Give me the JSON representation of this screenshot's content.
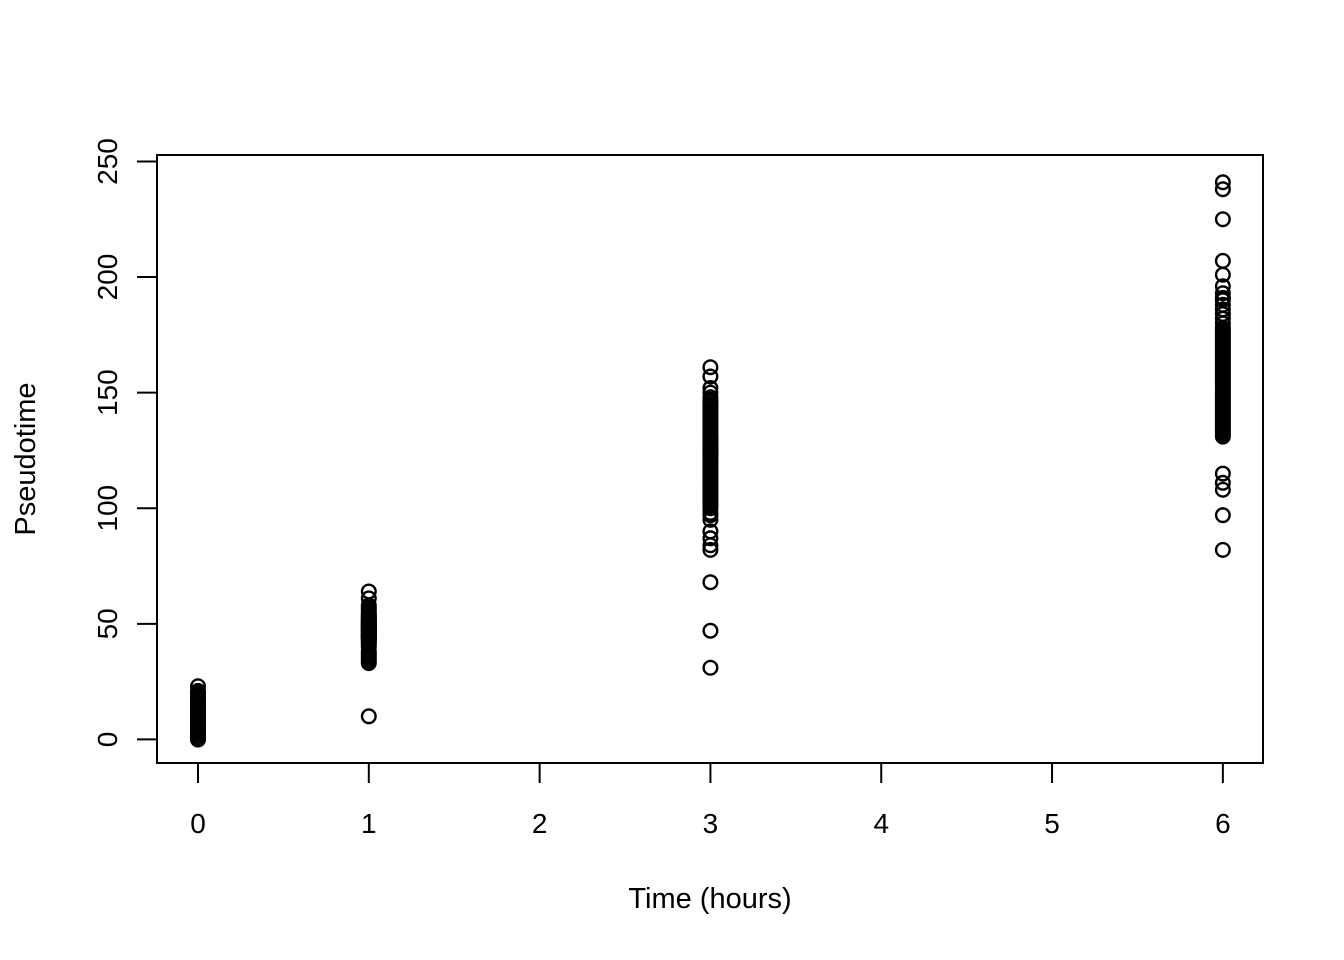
{
  "chart_data": {
    "type": "scatter",
    "title": "",
    "xlabel": "Time (hours)",
    "ylabel": "Pseudotime",
    "x_ticks": [
      0,
      1,
      2,
      3,
      4,
      5,
      6
    ],
    "y_ticks": [
      0,
      50,
      100,
      150,
      200,
      250
    ],
    "xlim": [
      -0.24,
      6.235
    ],
    "ylim": [
      -10.2,
      252.8
    ],
    "grid": false,
    "legend": "none",
    "marker": "open-circle",
    "point_color": "#000000",
    "axis_color": "#000000",
    "background_color": "#ffffff",
    "groups": [
      {
        "x": 0,
        "values": [
          0,
          0,
          1,
          2,
          3,
          4,
          5,
          5,
          6,
          6,
          7,
          7,
          7,
          8,
          8,
          8,
          9,
          9,
          9,
          9,
          10,
          10,
          10,
          10,
          11,
          11,
          11,
          11,
          12,
          12,
          12,
          12,
          13,
          13,
          13,
          13,
          14,
          14,
          14,
          15,
          15,
          15,
          16,
          16,
          16,
          17,
          17,
          18,
          18,
          19,
          20,
          21,
          23
        ]
      },
      {
        "x": 1,
        "values": [
          10,
          33,
          34,
          35,
          36,
          37,
          38,
          40,
          41,
          42,
          42,
          43,
          43,
          44,
          44,
          44,
          45,
          45,
          45,
          45,
          46,
          46,
          46,
          47,
          47,
          47,
          47,
          48,
          48,
          48,
          48,
          49,
          49,
          49,
          50,
          50,
          50,
          50,
          51,
          51,
          51,
          52,
          52,
          52,
          53,
          53,
          54,
          54,
          55,
          56,
          57,
          58,
          61,
          64
        ]
      },
      {
        "x": 3,
        "values": [
          31,
          47,
          68,
          82,
          84,
          87,
          90,
          95,
          97,
          98,
          100,
          101,
          102,
          103,
          104,
          105,
          106,
          107,
          108,
          109,
          110,
          111,
          112,
          113,
          114,
          115,
          116,
          117,
          118,
          119,
          120,
          121,
          122,
          123,
          123,
          124,
          124,
          125,
          125,
          126,
          126,
          127,
          127,
          128,
          128,
          129,
          129,
          130,
          130,
          131,
          131,
          132,
          133,
          134,
          135,
          136,
          137,
          138,
          139,
          140,
          141,
          142,
          143,
          144,
          145,
          146,
          147,
          148,
          150,
          152,
          157,
          161
        ]
      },
      {
        "x": 6,
        "values": [
          82,
          97,
          108,
          111,
          115,
          131,
          132,
          133,
          134,
          135,
          136,
          137,
          138,
          139,
          140,
          141,
          142,
          143,
          144,
          145,
          146,
          147,
          148,
          149,
          150,
          151,
          152,
          153,
          154,
          155,
          156,
          157,
          158,
          159,
          160,
          161,
          162,
          163,
          164,
          165,
          166,
          167,
          168,
          169,
          170,
          171,
          172,
          173,
          174,
          175,
          176,
          177,
          178,
          180,
          182,
          184,
          186,
          188,
          190,
          191,
          193,
          196,
          201,
          207,
          225,
          238,
          241
        ]
      }
    ]
  }
}
